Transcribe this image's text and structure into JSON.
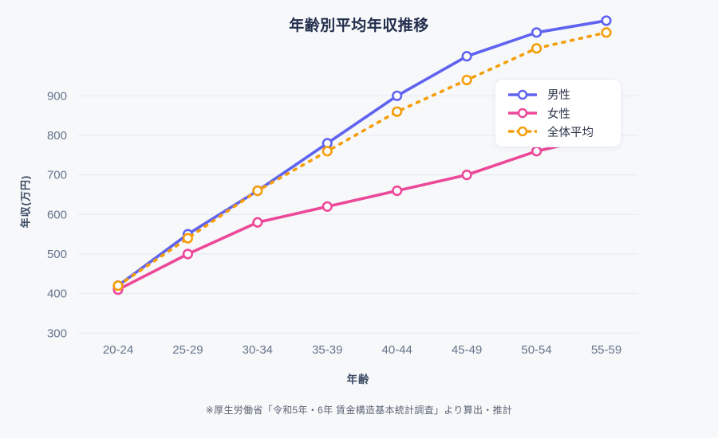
{
  "page": {
    "background": "#f7f8fa"
  },
  "chart_data": {
    "type": "line",
    "title": "年齢別平均年収推移",
    "xlabel": "年齢",
    "ylabel": "年収(万円)",
    "categories": [
      "20-24",
      "25-29",
      "30-34",
      "35-39",
      "40-44",
      "45-49",
      "50-54",
      "55-59"
    ],
    "series": [
      {
        "name": "男性",
        "color": "#5f63ef",
        "style": "solid",
        "values": [
          420,
          550,
          660,
          780,
          900,
          1000,
          1060,
          1090
        ]
      },
      {
        "name": "女性",
        "color": "#ec4899",
        "style": "solid",
        "values": [
          410,
          500,
          580,
          620,
          660,
          700,
          760,
          800
        ]
      },
      {
        "name": "全体平均",
        "color": "#f59e0b",
        "style": "dashed",
        "values": [
          420,
          540,
          660,
          760,
          860,
          940,
          1020,
          1060
        ]
      }
    ],
    "y_ticks": [
      300,
      400,
      500,
      600,
      700,
      800,
      900
    ],
    "ylim": [
      300,
      1120
    ],
    "grid": true,
    "legend_position": "upper-right",
    "source_note": "※厚生労働省「令和5年・6年 賃金構造基本統計調査」より算出・推計",
    "colors": {
      "grid": "#e3e8f0",
      "tick_label": "#64748b",
      "title": "#232e4d",
      "axis_label": "#3b4a63",
      "note": "#5c6575",
      "marker_fill": "#ffffff"
    }
  }
}
